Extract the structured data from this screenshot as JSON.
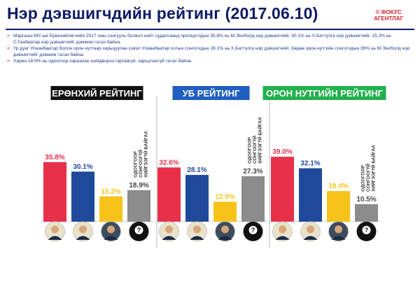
{
  "header": {
    "title": "Нэр дэвшигчдийн рейтинг (2017.06.10)",
    "source_line1": "© ФОКУС",
    "source_line2": "АГЕНТЛАГ"
  },
  "notes": [
    "Маргааш МУ-ын Ерөнхийлөгчийн 2017 оны сонгууль болвол нийт судалгаанд оролцогчдын 35.8% нь М.Энхболд нэр дэвшигчийг, 30.1% нь Х.Баттулга нэр дэвшигчийг, 15.2% нь С.Ганбаатар нэр дэвшигчийг дэмжиж гэсэн байна.",
    "Үр дүнг Улаанбаатар болон орон нутгаар харьцуулан үзвэл Улаанбаатар хотын сонгогчдын 28.1% нь Х.Баттулга нэр дэвшигчийг, Хөдөө орон нутгийн сонгогчдын 39% нь М.Энхболд нэр дэвшигчийг дэмжиж гэсэн байна.",
    "Харин 18.9% нь одоогоор хараахан шийдвэрээ гаргаагүй, харьулахгүй гэсэн байна."
  ],
  "colors": {
    "enkhbold": "#e8304a",
    "battulga": "#1f4a9c",
    "ganbaatar": "#f7c21a",
    "undecided": "#8c8c8c",
    "national_header": "#111111",
    "ub_header": "#1f5fbf",
    "rural_header": "#22b14c"
  },
  "chart_data": [
    {
      "type": "bar",
      "title": "ЕРӨНХИЙ РЕЙТИНГ",
      "categories": [
        "М.Энхболд",
        "Х.Баттулга",
        "С.Ганбаатар",
        "Одоогоор сонгоогүй хийгээгүй байгаа"
      ],
      "values": [
        35.8,
        30.1,
        15.2,
        18.9
      ],
      "value_labels": [
        "35.8%",
        "30.1%",
        "15.2%",
        "18.9%"
      ],
      "undecided_label": [
        "ОДООГООР",
        "СОНГООГҮЙ",
        "ХИЙГЭЭГҮЙ БАЙГАА"
      ],
      "ylim": [
        0,
        40
      ]
    },
    {
      "type": "bar",
      "title": "УБ РЕЙТИНГ",
      "categories": [
        "М.Энхболд",
        "Х.Баттулга",
        "С.Ганбаатар",
        "Одоогоор сонгоогүй хийгээгүй байгаа"
      ],
      "values": [
        32.6,
        28.1,
        12.0,
        27.3
      ],
      "value_labels": [
        "32.6%",
        "28.1%",
        "12.0%",
        "27.3%"
      ],
      "undecided_label": [
        "ОДООГООР",
        "СОНГООГҮЙ",
        "ХИЙГЭЭГҮЙ БАЙГАА"
      ],
      "ylim": [
        0,
        40
      ]
    },
    {
      "type": "bar",
      "title": "ОРОН НУТГИЙН РЕЙТИНГ",
      "categories": [
        "М.Энхболд",
        "Х.Баттулга",
        "С.Ганбаатар",
        "Одоогоор сонгоогүй хийгээгүй байгаа"
      ],
      "values": [
        39.0,
        32.1,
        18.4,
        10.5
      ],
      "value_labels": [
        "39.0%",
        "32.1%",
        "18.4%",
        "10.5%"
      ],
      "undecided_label": [
        "ОДООГООР",
        "СОНГООГҮЙ",
        "ХИЙГЭЭГҮЙ БАЙГАА"
      ],
      "ylim": [
        0,
        40
      ]
    }
  ]
}
